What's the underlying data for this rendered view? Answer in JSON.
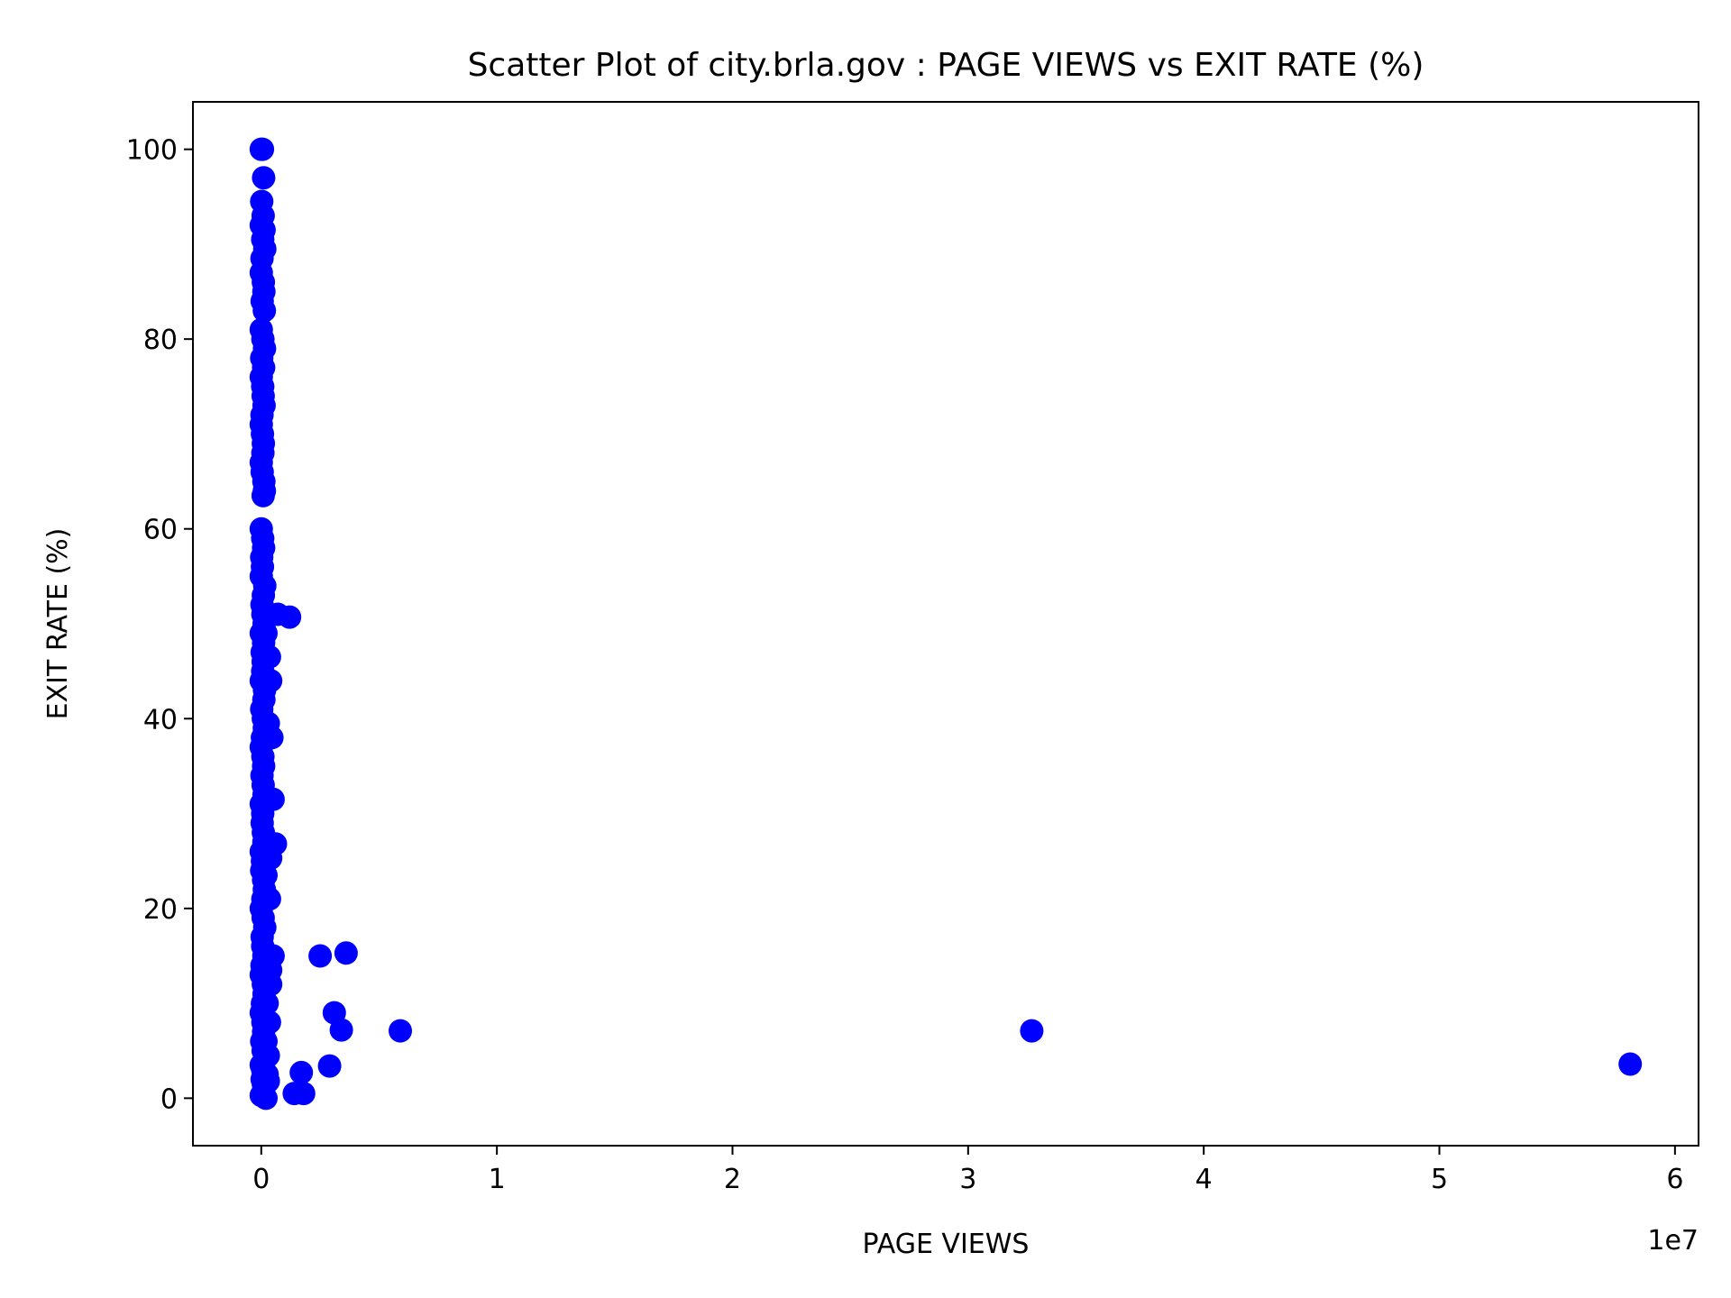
{
  "chart_data": {
    "type": "scatter",
    "title": "Scatter Plot of city.brla.gov : PAGE VIEWS vs EXIT RATE (%)",
    "xlabel": "PAGE VIEWS",
    "ylabel": "EXIT RATE (%)",
    "x_offset_label": "1e7",
    "xlim": [
      -2900000,
      61000000
    ],
    "ylim": [
      -5,
      105
    ],
    "xticks": [
      0,
      10000000,
      20000000,
      30000000,
      40000000,
      50000000,
      60000000
    ],
    "xtick_labels": [
      "0",
      "1",
      "2",
      "3",
      "4",
      "5",
      "6"
    ],
    "yticks": [
      0,
      20,
      40,
      60,
      80,
      100
    ],
    "ytick_labels": [
      "0",
      "20",
      "40",
      "60",
      "80",
      "100"
    ],
    "grid": false,
    "marker_color": "#0000ff",
    "series": [
      {
        "x": [
          0,
          50000,
          100000,
          20000,
          80000,
          0,
          120000,
          60000,
          150000,
          30000,
          0,
          90000,
          110000,
          40000,
          130000,
          0,
          70000,
          140000,
          20000,
          100000,
          0,
          60000,
          80000,
          120000,
          30000,
          0,
          50000,
          90000,
          70000,
          0,
          40000,
          110000,
          130000,
          80000,
          0,
          60000,
          100000,
          20000,
          50000,
          0,
          150000,
          90000,
          30000,
          70000,
          120000,
          0,
          100000,
          40000,
          80000,
          60000,
          0,
          140000,
          110000,
          20000,
          90000,
          130000,
          50000,
          0,
          70000,
          100000,
          30000,
          80000,
          120000,
          0,
          60000,
          40000,
          90000,
          110000,
          0,
          50000,
          20000,
          100000,
          130000,
          70000,
          0,
          80000,
          150000,
          40000,
          60000,
          110000,
          30000,
          0,
          90000,
          120000,
          50000,
          0,
          70000,
          100000,
          20000,
          80000,
          140000,
          0,
          60000,
          40000,
          90000,
          110000,
          0,
          200000,
          250000,
          300000,
          400000,
          350000,
          200000,
          500000,
          450000,
          300000,
          250000,
          400000,
          350000,
          200000,
          700000,
          1200000,
          400000,
          600000,
          500000,
          300000,
          400000,
          250000,
          350000,
          200000,
          300000,
          2500000,
          3600000,
          3100000,
          3400000,
          5900000,
          2900000,
          1700000,
          1400000,
          1800000,
          32700000,
          58100000
        ],
        "y": [
          100,
          100,
          97,
          94.5,
          93,
          92,
          91.5,
          90.5,
          89.5,
          88.5,
          87,
          86,
          85,
          84,
          83,
          81,
          80,
          79,
          78,
          77,
          76,
          75,
          74,
          73,
          72,
          71,
          70,
          69,
          68,
          67,
          66,
          65,
          64,
          63.5,
          60,
          59,
          58,
          57,
          56,
          55,
          54,
          53,
          52,
          51,
          50,
          49,
          48,
          47,
          46,
          45,
          44,
          43,
          42,
          41,
          40,
          39,
          38,
          37,
          36,
          35,
          34,
          33,
          32,
          31,
          30,
          29,
          28,
          27,
          26,
          25,
          24,
          23,
          22,
          21,
          20,
          19,
          18,
          17,
          16,
          15,
          14,
          13,
          12,
          11,
          10,
          9,
          8,
          7,
          6,
          5,
          4,
          3.5,
          3,
          2,
          1.5,
          1,
          0.3,
          0,
          2.5,
          1.8,
          13.5,
          21,
          23.5,
          31.5,
          38,
          39.5,
          26,
          44,
          46.5,
          49,
          51,
          50.7,
          25.3,
          26.8,
          15,
          14,
          12,
          10,
          8,
          6,
          4.5,
          15,
          15.3,
          9,
          7.2,
          7.1,
          3.4,
          2.7,
          0.5,
          0.5,
          7.1,
          3.6
        ]
      }
    ]
  }
}
